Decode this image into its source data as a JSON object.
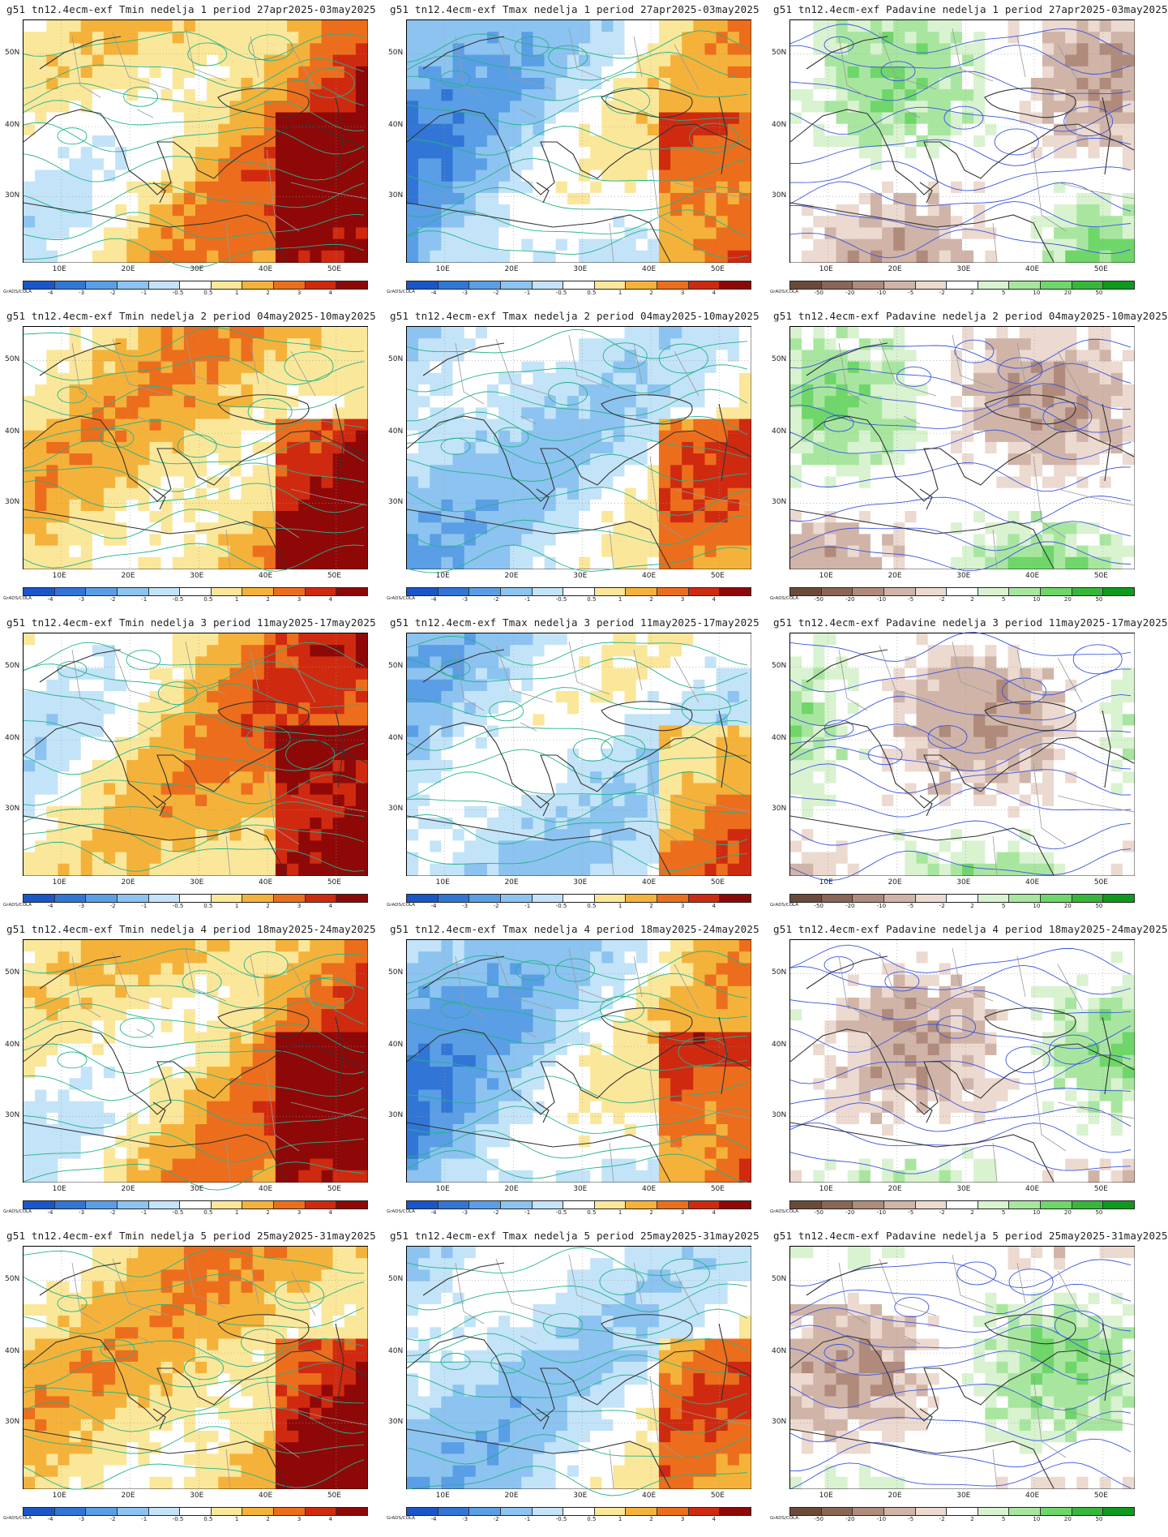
{
  "layout": {
    "rows": 5,
    "cols": 3
  },
  "x_axis_labels": [
    "10E",
    "20E",
    "30E",
    "40E",
    "50E"
  ],
  "y_axis_labels": [
    "50N",
    "40N",
    "30N"
  ],
  "credit": "GrADS/COLA",
  "colorbars": {
    "temperature": {
      "labels": [
        "-4",
        "-3",
        "-2",
        "-1",
        "-0.5",
        "0.5",
        "1",
        "2",
        "3",
        "4"
      ],
      "colors": [
        "#1a56c9",
        "#3176d6",
        "#5a9ee6",
        "#8cc3f0",
        "#c3e3f8",
        "#ffffff",
        "#fbe79a",
        "#f5b23a",
        "#ec6e1c",
        "#cf2a10",
        "#8f0808"
      ]
    },
    "precipitation": {
      "labels": [
        "-50",
        "-20",
        "-10",
        "-5",
        "-2",
        "2",
        "5",
        "10",
        "20",
        "50"
      ],
      "colors": [
        "#6b4a3a",
        "#8b6555",
        "#b08a7b",
        "#d0b4a8",
        "#ecd9cf",
        "#ffffff",
        "#d9f2d0",
        "#a8e6a0",
        "#6fd66a",
        "#35b83a",
        "#0e9a1e"
      ]
    }
  },
  "panels": [
    {
      "title": "g51 tn12.4ecm-exf Tmin nedelja 1 period 27apr2025-03may2025",
      "variable": "Tmin",
      "week": "1"
    },
    {
      "title": "g51 tn12.4ecm-exf Tmax nedelja 1 period 27apr2025-03may2025",
      "variable": "Tmax",
      "week": "1"
    },
    {
      "title": "g51 tn12.4ecm-exf Padavine nedelja 1 period 27apr2025-03may2025",
      "variable": "Padavine",
      "week": "1"
    },
    {
      "title": "g51 tn12.4ecm-exf Tmin nedelja 2 period 04may2025-10may2025",
      "variable": "Tmin",
      "week": "2"
    },
    {
      "title": "g51 tn12.4ecm-exf Tmax nedelja 2 period 04may2025-10may2025",
      "variable": "Tmax",
      "week": "2"
    },
    {
      "title": "g51 tn12.4ecm-exf Padavine nedelja 2 period 04may2025-10may2025",
      "variable": "Padavine",
      "week": "2"
    },
    {
      "title": "g51 tn12.4ecm-exf Tmin nedelja 3 period 11may2025-17may2025",
      "variable": "Tmin",
      "week": "3"
    },
    {
      "title": "g51 tn12.4ecm-exf Tmax nedelja 3 period 11may2025-17may2025",
      "variable": "Tmax",
      "week": "3"
    },
    {
      "title": "g51 tn12.4ecm-exf Padavine nedelja 3 period 11may2025-17may2025",
      "variable": "Padavine",
      "week": "3"
    },
    {
      "title": "g51 tn12.4ecm-exf Tmin nedelja 4 period 18may2025-24may2025",
      "variable": "Tmin",
      "week": "4"
    },
    {
      "title": "g51 tn12.4ecm-exf Tmax nedelja 4 period 18may2025-24may2025",
      "variable": "Tmax",
      "week": "4"
    },
    {
      "title": "g51 tn12.4ecm-exf Padavine nedelja 4 period 18may2025-24may2025",
      "variable": "Padavine",
      "week": "4"
    },
    {
      "title": "g51 tn12.4ecm-exf Tmin nedelja 5 period 25may2025-31may2025",
      "variable": "Tmin",
      "week": "5"
    },
    {
      "title": "g51 tn12.4ecm-exf Tmax nedelja 5 period 25may2025-31may2025",
      "variable": "Tmax",
      "week": "5"
    },
    {
      "title": "g51 tn12.4ecm-exf Padavine nedelja 5 period 25may2025-31may2025",
      "variable": "Padavine",
      "week": "5"
    }
  ]
}
